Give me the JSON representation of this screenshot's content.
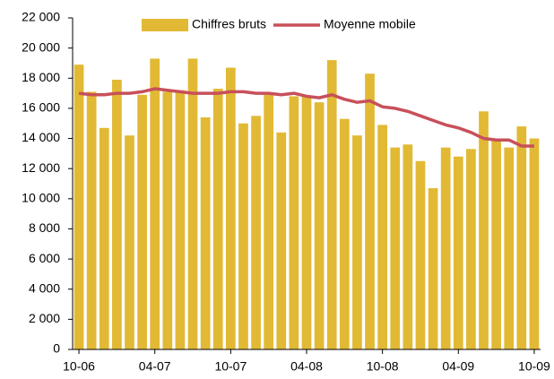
{
  "chart_data": {
    "type": "bar_line",
    "categories": [
      "10-06",
      null,
      null,
      null,
      null,
      null,
      "04-07",
      null,
      null,
      null,
      null,
      null,
      "10-07",
      null,
      null,
      null,
      null,
      null,
      "04-08",
      null,
      null,
      null,
      null,
      null,
      "10-08",
      null,
      null,
      null,
      null,
      null,
      "04-09",
      null,
      null,
      null,
      null,
      null,
      "10-09"
    ],
    "series": [
      {
        "name": "Chiffres bruts",
        "type": "bar",
        "color": "#e2b935",
        "values": [
          18900,
          17100,
          14700,
          17900,
          14200,
          16900,
          19300,
          17100,
          17200,
          19300,
          15400,
          17300,
          18700,
          15000,
          15500,
          16900,
          14400,
          16800,
          16800,
          16400,
          19200,
          15300,
          14200,
          18300,
          14900,
          13400,
          13600,
          12500,
          10700,
          13400,
          12800,
          13300,
          15800,
          13900,
          13400,
          14800,
          14000
        ]
      },
      {
        "name": "Moyenne mobile",
        "type": "line",
        "color": "#c8505a",
        "values": [
          17000,
          16900,
          16900,
          17000,
          17000,
          17100,
          17300,
          17200,
          17100,
          17000,
          17000,
          17000,
          17100,
          17100,
          17000,
          17000,
          16900,
          17000,
          16800,
          16700,
          16900,
          16600,
          16400,
          16500,
          16100,
          16000,
          15800,
          15500,
          15200,
          14900,
          14700,
          14400,
          14000,
          13900,
          13900,
          13500,
          13500
        ]
      }
    ],
    "ylim": [
      0,
      22000
    ],
    "yticks": [
      0,
      {
        "value": 2000,
        "label": "2 000"
      },
      {
        "value": 4000,
        "label": "4 000"
      },
      {
        "value": 6000,
        "label": "6 000"
      },
      {
        "value": 8000,
        "label": "8 000"
      },
      {
        "value": 10000,
        "label": "10 000"
      },
      {
        "value": 12000,
        "label": "12 000"
      },
      {
        "value": 14000,
        "label": "14 000"
      },
      {
        "value": 16000,
        "label": "16 000"
      },
      {
        "value": 18000,
        "label": "18 000"
      },
      {
        "value": 20000,
        "label": "20 000"
      },
      {
        "value": 22000,
        "label": "22 000"
      }
    ],
    "legend": "top"
  }
}
